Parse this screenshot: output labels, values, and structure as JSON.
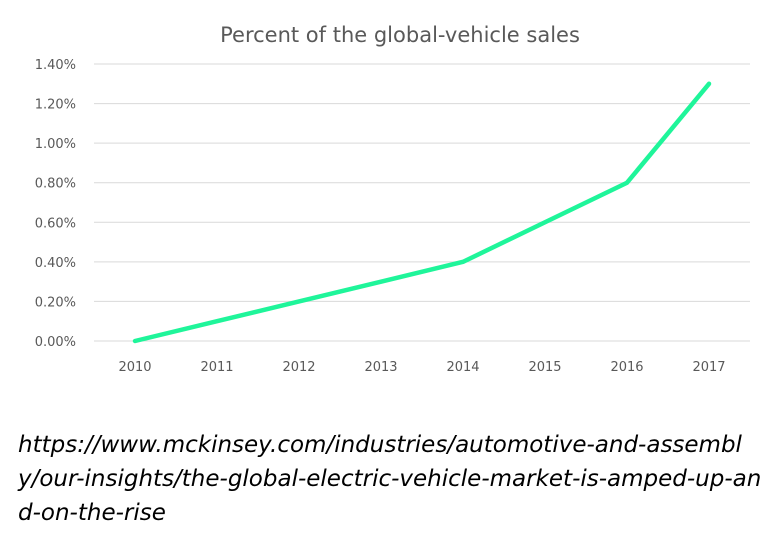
{
  "chart_data": {
    "type": "line",
    "title": "Percent of the global-vehicle sales",
    "xlabel": "",
    "ylabel": "",
    "categories": [
      "2010",
      "2011",
      "2012",
      "2013",
      "2014",
      "2015",
      "2016",
      "2017"
    ],
    "series": [
      {
        "name": "Percent of the global-vehicle sales",
        "values": [
          0.0,
          0.1,
          0.2,
          0.3,
          0.4,
          0.6,
          0.8,
          1.3
        ],
        "color": "#1ff59a"
      }
    ],
    "ylim": [
      0,
      1.4
    ],
    "ytick_values": [
      0.0,
      0.2,
      0.4,
      0.6,
      0.8,
      1.0,
      1.2,
      1.4
    ],
    "ytick_labels": [
      "0.00%",
      "0.20%",
      "0.40%",
      "0.60%",
      "0.80%",
      "1.00%",
      "1.20%",
      "1.40%"
    ],
    "grid": true,
    "legend": "none"
  },
  "source": {
    "url": "https://www.mckinsey.com/industries/automotive-and-assembly/our-insights/the-global-electric-vehicle-market-is-amped-up-and-on-the-rise"
  },
  "colors": {
    "text": "#595959",
    "grid": "#d9d9d9",
    "line": "#1ff59a"
  }
}
